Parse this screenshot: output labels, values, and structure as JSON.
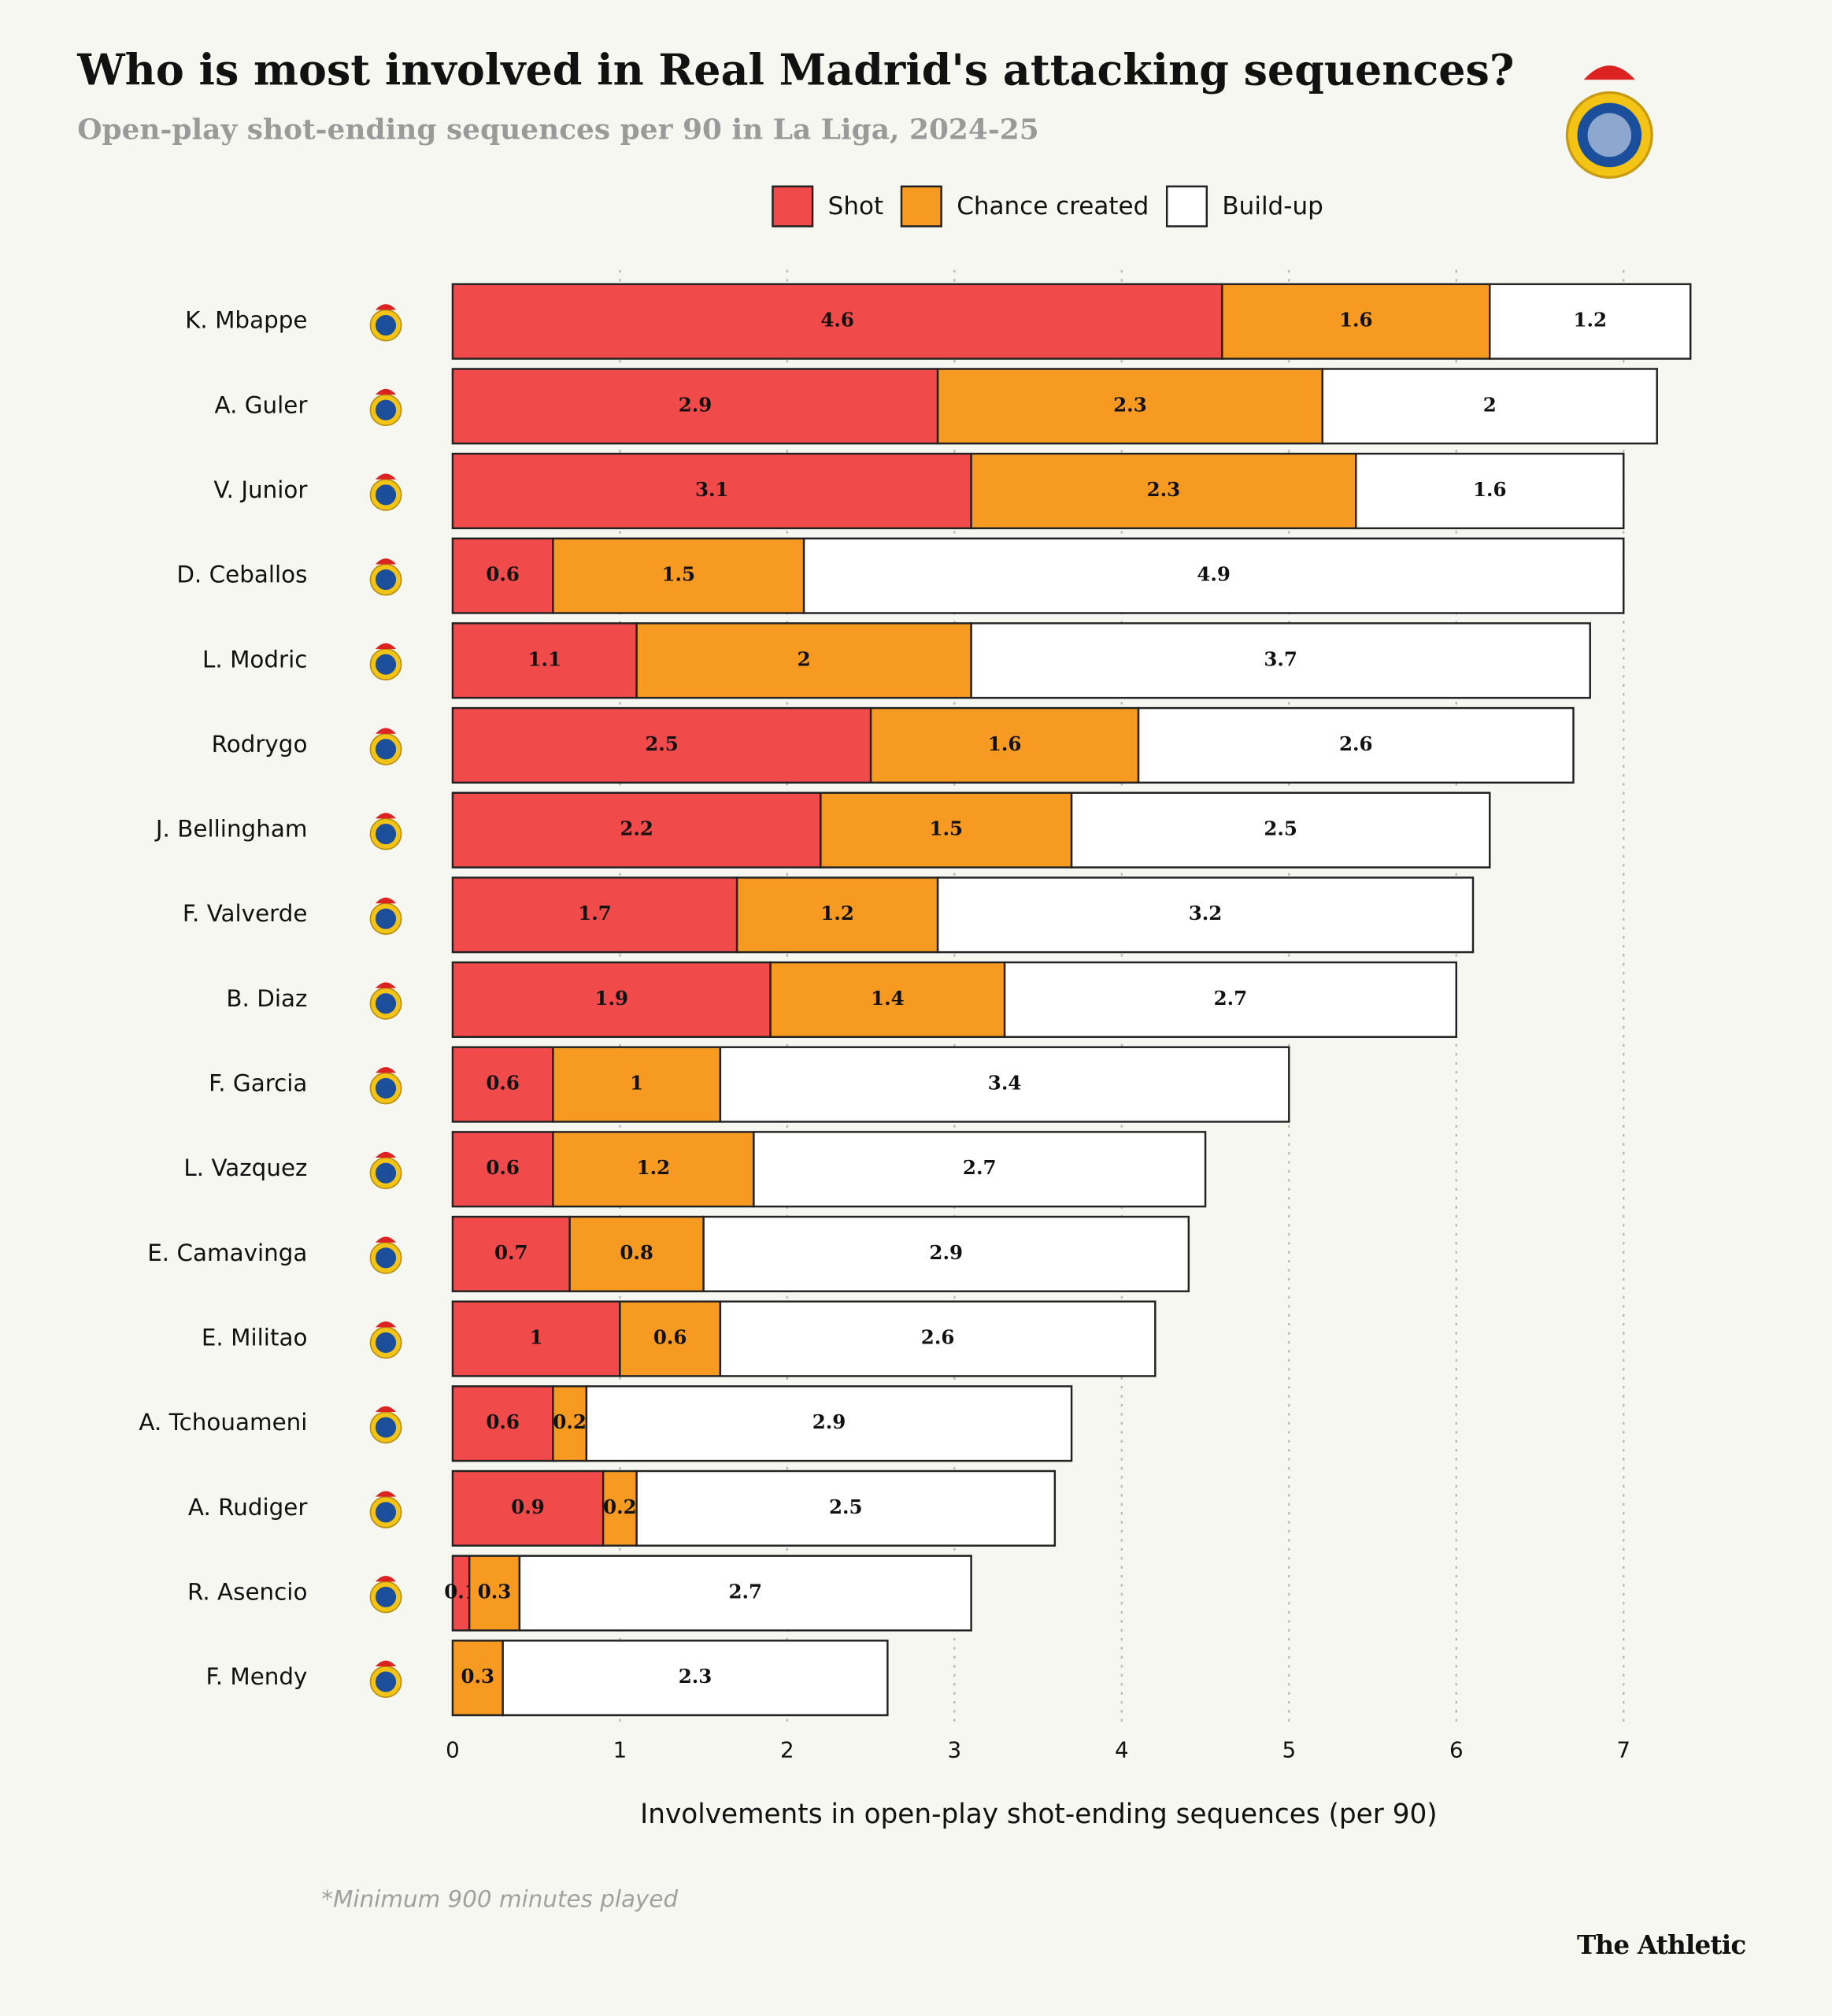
{
  "chart_data": {
    "type": "stacked_barh",
    "title": "Who is most involved in Real Madrid's attacking sequences?",
    "subtitle": "Open-play shot-ending sequences per 90 in La Liga, 2024-25",
    "x_label": "Involvements in open-play shot-ending sequences (per 90)",
    "note": "*Minimum 900 minutes played",
    "source": "The Athletic",
    "categories": [
      "K. Mbappe",
      "A. Guler",
      "V. Junior",
      "D. Ceballos",
      "L. Modric",
      "Rodrygo",
      "J. Bellingham",
      "F. Valverde",
      "B. Diaz",
      "F. Garcia",
      "L. Vazquez",
      "E. Camavinga",
      "E. Militao",
      "A. Tchouameni",
      "A. Rudiger",
      "R. Asencio",
      "F. Mendy"
    ],
    "series": [
      {
        "name": "Shot",
        "color": "#f04a4b",
        "values": [
          4.6,
          2.9,
          3.1,
          0.6,
          1.1,
          2.5,
          2.2,
          1.7,
          1.9,
          0.6,
          0.6,
          0.7,
          1,
          0.6,
          0.9,
          0.1,
          0
        ]
      },
      {
        "name": "Chance created",
        "color": "#f79a21",
        "values": [
          1.6,
          2.3,
          2.3,
          1.5,
          2,
          1.6,
          1.5,
          1.2,
          1.4,
          1,
          1.2,
          0.8,
          0.6,
          0.2,
          0.2,
          0.3,
          0.3
        ]
      },
      {
        "name": "Build-up",
        "color": "#ffffff",
        "values": [
          1.2,
          2,
          1.6,
          4.9,
          3.7,
          2.6,
          2.5,
          3.2,
          2.7,
          3.4,
          2.7,
          2.9,
          2.6,
          2.9,
          2.5,
          2.7,
          2.3
        ]
      }
    ],
    "xlim": [
      0,
      7.5
    ],
    "xticks": [
      0,
      1,
      2,
      3,
      4,
      5,
      6,
      7
    ],
    "grid": true
  }
}
